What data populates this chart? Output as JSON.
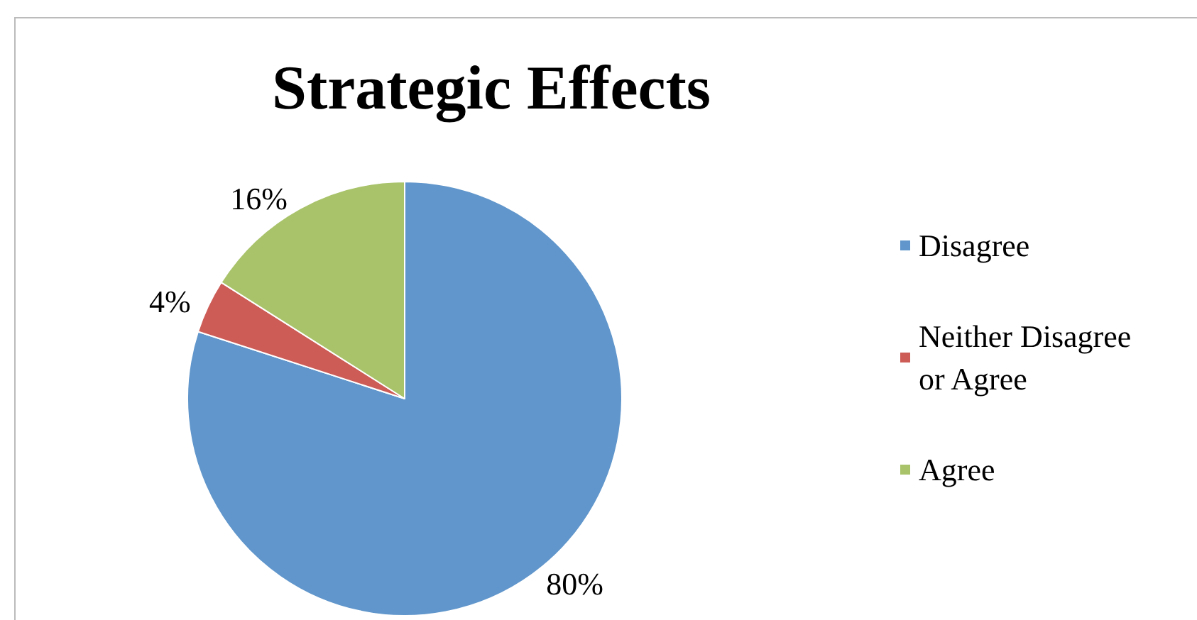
{
  "chart_data": {
    "type": "pie",
    "title": "Strategic Effects",
    "categories": [
      "Disagree",
      "Neither Disagree or Agree",
      "Agree"
    ],
    "values": [
      80,
      4,
      16
    ],
    "colors": [
      "#6096cb",
      "#cd5c57",
      "#a8c36a"
    ],
    "value_labels": [
      "80%",
      "4%",
      "16%"
    ],
    "legend": "right"
  }
}
